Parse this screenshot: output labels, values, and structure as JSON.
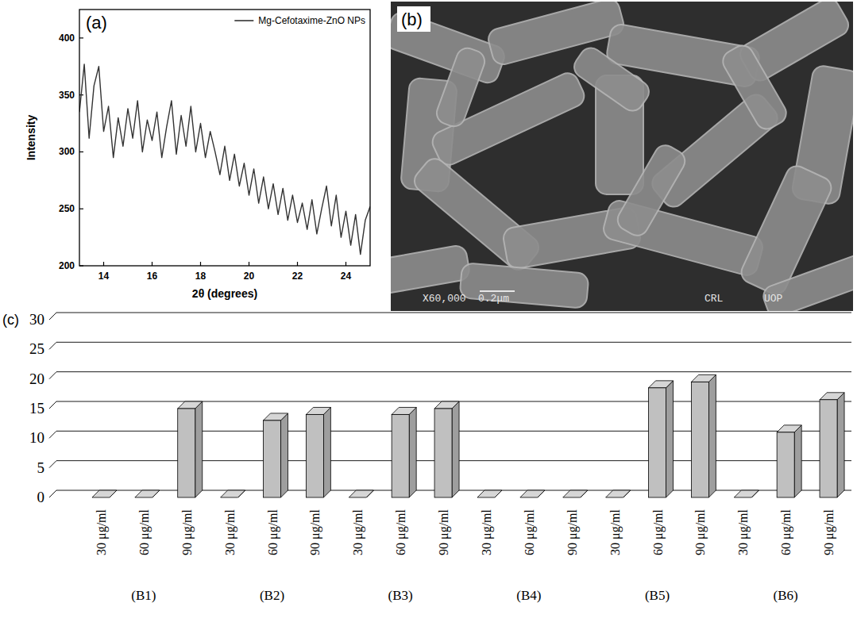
{
  "chart_data": [
    {
      "type": "line",
      "label": "(a)",
      "x_label": "2θ (degrees)",
      "y_label": "Intensity",
      "x": [
        13.0,
        13.2,
        13.4,
        13.6,
        13.8,
        14.0,
        14.2,
        14.4,
        14.6,
        14.8,
        15.0,
        15.2,
        15.4,
        15.6,
        15.8,
        16.0,
        16.2,
        16.4,
        16.6,
        16.8,
        17.0,
        17.2,
        17.4,
        17.6,
        17.8,
        18.0,
        18.2,
        18.4,
        18.6,
        18.8,
        19.0,
        19.2,
        19.4,
        19.6,
        19.8,
        20.0,
        20.2,
        20.4,
        20.6,
        20.8,
        21.0,
        21.2,
        21.4,
        21.6,
        21.8,
        22.0,
        22.2,
        22.4,
        22.6,
        22.8,
        23.0,
        23.2,
        23.4,
        23.6,
        23.8,
        24.0,
        24.2,
        24.4,
        24.6,
        24.8,
        25.0
      ],
      "series": [
        {
          "name": "Mg-Cefotaxime-ZnO NPs",
          "color": "#333333",
          "values": [
            335,
            377,
            312,
            358,
            375,
            318,
            340,
            295,
            330,
            305,
            338,
            312,
            345,
            300,
            328,
            310,
            335,
            295,
            322,
            345,
            298,
            332,
            305,
            340,
            300,
            325,
            295,
            318,
            300,
            280,
            305,
            275,
            298,
            270,
            290,
            262,
            285,
            255,
            278,
            250,
            272,
            245,
            268,
            240,
            262,
            238,
            255,
            232,
            258,
            228,
            250,
            270,
            235,
            262,
            225,
            248,
            218,
            245,
            210,
            240,
            252
          ]
        }
      ],
      "xlim": [
        13,
        25
      ],
      "ylim": [
        200,
        425
      ],
      "xticks": [
        14,
        16,
        18,
        20,
        22,
        24
      ],
      "yticks": [
        200,
        250,
        300,
        350,
        400
      ],
      "legend": "upper right"
    },
    {
      "type": "bar",
      "label": "(c)",
      "categories": [
        "30 μg/ml",
        "60 μg/ml",
        "90 μg/ml",
        "30 μg/ml",
        "60 μg/ml",
        "90 μg/ml",
        "30 μg/ml",
        "60 μg/ml",
        "90 μg/ml",
        "30 μg/ml",
        "60 μg/ml",
        "90 μg/ml",
        "30 μg/ml",
        "60 μg/ml",
        "90 μg/ml",
        "30 μg/ml",
        "60 μg/ml",
        "90 μg/ml"
      ],
      "groups": [
        "(B1)",
        "(B2)",
        "(B3)",
        "(B4)",
        "(B5)",
        "(B6)"
      ],
      "values": [
        0,
        0,
        15,
        0,
        13,
        14,
        0,
        14,
        15,
        0,
        0,
        0,
        0,
        18.5,
        19.5,
        0,
        11,
        16.5
      ],
      "color": "#c0c0c0",
      "ylim": [
        0,
        30
      ],
      "yticks": [
        0,
        5,
        10,
        15,
        20,
        25,
        30
      ],
      "grid": true
    }
  ],
  "image": {
    "label": "(b)",
    "magnification": "X60,000",
    "scale_bar": "0.2μm",
    "lab": "CRL",
    "institution": "UOP"
  }
}
